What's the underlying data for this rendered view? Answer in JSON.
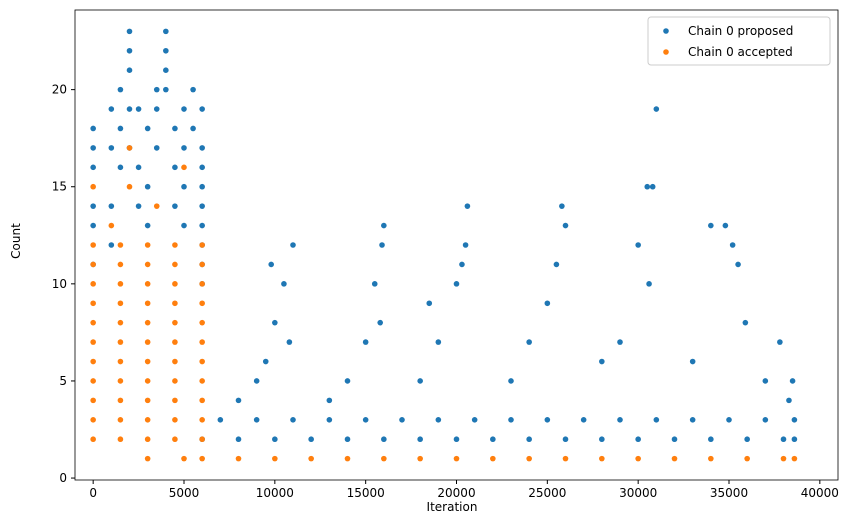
{
  "chart_data": {
    "type": "scatter",
    "x_label": "Iteration",
    "y_label": "Count",
    "xlim": [
      -1000,
      41000
    ],
    "ylim": [
      -0.1,
      24.1
    ],
    "xticks": [
      0,
      5000,
      10000,
      15000,
      20000,
      25000,
      30000,
      35000,
      40000
    ],
    "yticks": [
      0,
      5,
      10,
      15,
      20
    ],
    "legend": "upper right",
    "series": [
      {
        "name": "Chain 0 proposed",
        "color": "#1f77b4",
        "x": [
          0,
          0,
          0,
          0,
          0,
          0,
          1000,
          1000,
          1000,
          1000,
          1500,
          1500,
          1500,
          2000,
          2000,
          2000,
          2000,
          2000,
          2500,
          2500,
          2500,
          3000,
          3000,
          3000,
          3500,
          3500,
          3500,
          4000,
          4000,
          4000,
          4000,
          4500,
          4500,
          4500,
          5000,
          5000,
          5000,
          5000,
          5500,
          5500,
          6000,
          6000,
          6000,
          6000,
          6000,
          6000,
          6000,
          6000,
          6000,
          6000,
          8000,
          10000,
          12000,
          14000,
          16000,
          18000,
          20000,
          22000,
          24000,
          26000,
          28000,
          30000,
          32000,
          34000,
          36000,
          38000,
          38600,
          7000,
          9000,
          11000,
          13000,
          15000,
          17000,
          19000,
          21000,
          23000,
          25000,
          27000,
          29000,
          31000,
          33000,
          35000,
          37000,
          38600,
          8000,
          9000,
          9500,
          10000,
          10500,
          11000,
          10800,
          9800,
          13000,
          14000,
          15000,
          15500,
          15800,
          16000,
          15900,
          18000,
          18500,
          19000,
          20000,
          20600,
          20500,
          20300,
          23000,
          24000,
          25000,
          25800,
          26000,
          25500,
          28000,
          29000,
          30000,
          30500,
          30800,
          31000,
          30600,
          33000,
          34000,
          34800,
          35200,
          35500,
          35900,
          37000,
          37800,
          38500,
          38300
        ],
        "values": [
          18,
          17,
          16,
          14,
          13,
          11,
          19,
          17,
          14,
          12,
          20,
          18,
          16,
          23,
          22,
          21,
          19,
          17,
          19,
          16,
          14,
          18,
          15,
          13,
          20,
          19,
          17,
          23,
          22,
          21,
          20,
          18,
          16,
          14,
          19,
          17,
          15,
          13,
          20,
          18,
          19,
          17,
          16,
          15,
          14,
          13,
          12,
          11,
          10,
          2,
          2,
          2,
          2,
          2,
          2,
          2,
          2,
          2,
          2,
          2,
          2,
          2,
          2,
          2,
          2,
          2,
          2,
          3,
          3,
          3,
          3,
          3,
          3,
          3,
          3,
          3,
          3,
          3,
          3,
          3,
          3,
          3,
          3,
          3,
          4,
          5,
          6,
          8,
          10,
          12,
          7,
          11,
          4,
          5,
          7,
          10,
          8,
          13,
          12,
          5,
          9,
          7,
          10,
          14,
          12,
          11,
          5,
          7,
          9,
          14,
          13,
          11,
          6,
          7,
          12,
          15,
          15,
          19,
          10,
          6,
          13,
          13,
          12,
          11,
          8,
          5,
          7,
          5,
          4
        ]
      },
      {
        "name": "Chain 0 accepted",
        "color": "#ff7f0e",
        "x": [
          0,
          0,
          0,
          0,
          0,
          0,
          0,
          0,
          0,
          0,
          0,
          1500,
          1500,
          1500,
          1500,
          1500,
          1500,
          1500,
          1500,
          1500,
          1500,
          1500,
          3000,
          3000,
          3000,
          3000,
          3000,
          3000,
          3000,
          3000,
          3000,
          3000,
          3000,
          4500,
          4500,
          4500,
          4500,
          4500,
          4500,
          4500,
          4500,
          4500,
          4500,
          4500,
          6000,
          6000,
          6000,
          6000,
          6000,
          6000,
          6000,
          6000,
          6000,
          6000,
          6000,
          1000,
          2000,
          3500,
          5000,
          2000,
          0,
          3000,
          5000,
          6000,
          8000,
          10000,
          12000,
          14000,
          16000,
          18000,
          20000,
          22000,
          24000,
          26000,
          28000,
          30000,
          32000,
          34000,
          36000,
          38000,
          38600
        ],
        "values": [
          2,
          3,
          4,
          5,
          6,
          7,
          8,
          9,
          10,
          11,
          12,
          2,
          3,
          4,
          5,
          6,
          7,
          8,
          9,
          10,
          11,
          12,
          2,
          3,
          4,
          5,
          6,
          7,
          8,
          9,
          10,
          11,
          12,
          2,
          3,
          4,
          5,
          6,
          7,
          8,
          9,
          10,
          11,
          12,
          2,
          3,
          4,
          5,
          6,
          7,
          8,
          9,
          10,
          11,
          12,
          13,
          15,
          14,
          16,
          17,
          15,
          1,
          1,
          1,
          1,
          1,
          1,
          1,
          1,
          1,
          1,
          1,
          1,
          1,
          1,
          1,
          1,
          1,
          1,
          1,
          1
        ]
      }
    ]
  }
}
